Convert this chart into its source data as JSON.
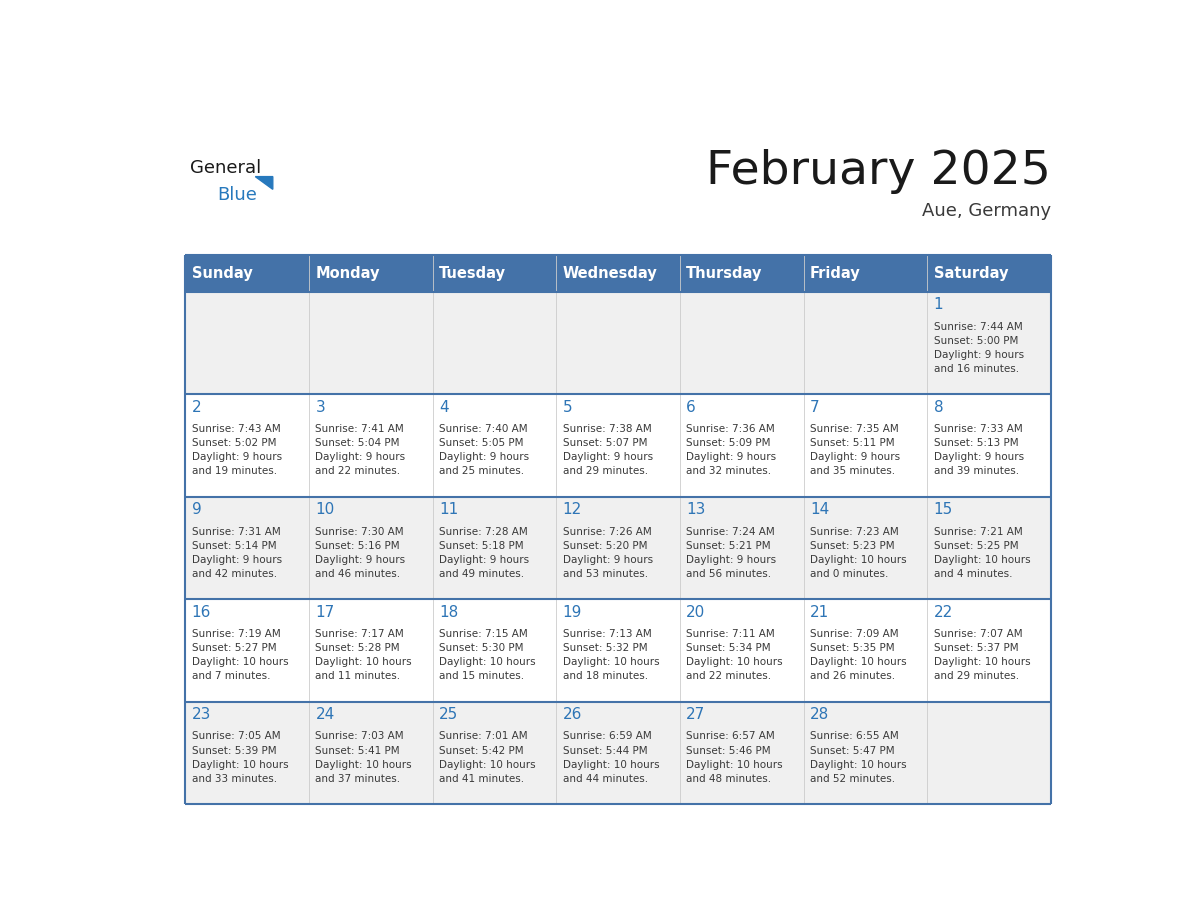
{
  "title": "February 2025",
  "subtitle": "Aue, Germany",
  "days_of_week": [
    "Sunday",
    "Monday",
    "Tuesday",
    "Wednesday",
    "Thursday",
    "Friday",
    "Saturday"
  ],
  "header_bg": "#4472a8",
  "header_text_color": "#ffffff",
  "row_bg_odd": "#f0f0f0",
  "row_bg_even": "#ffffff",
  "day_number_color": "#3a3a3a",
  "info_text_color": "#3a3a3a",
  "border_color": "#4472a8",
  "title_color": "#1a1a1a",
  "subtitle_color": "#3a3a3a",
  "blue_text_color": "#2e75b6",
  "logo_general_color": "#1a1a1a",
  "logo_blue_color": "#2779bd",
  "calendar_data": [
    {
      "day": 1,
      "col": 6,
      "row": 0,
      "sunrise": "7:44 AM",
      "sunset": "5:00 PM",
      "daylight": "9 hours and 16 minutes."
    },
    {
      "day": 2,
      "col": 0,
      "row": 1,
      "sunrise": "7:43 AM",
      "sunset": "5:02 PM",
      "daylight": "9 hours and 19 minutes."
    },
    {
      "day": 3,
      "col": 1,
      "row": 1,
      "sunrise": "7:41 AM",
      "sunset": "5:04 PM",
      "daylight": "9 hours and 22 minutes."
    },
    {
      "day": 4,
      "col": 2,
      "row": 1,
      "sunrise": "7:40 AM",
      "sunset": "5:05 PM",
      "daylight": "9 hours and 25 minutes."
    },
    {
      "day": 5,
      "col": 3,
      "row": 1,
      "sunrise": "7:38 AM",
      "sunset": "5:07 PM",
      "daylight": "9 hours and 29 minutes."
    },
    {
      "day": 6,
      "col": 4,
      "row": 1,
      "sunrise": "7:36 AM",
      "sunset": "5:09 PM",
      "daylight": "9 hours and 32 minutes."
    },
    {
      "day": 7,
      "col": 5,
      "row": 1,
      "sunrise": "7:35 AM",
      "sunset": "5:11 PM",
      "daylight": "9 hours and 35 minutes."
    },
    {
      "day": 8,
      "col": 6,
      "row": 1,
      "sunrise": "7:33 AM",
      "sunset": "5:13 PM",
      "daylight": "9 hours and 39 minutes."
    },
    {
      "day": 9,
      "col": 0,
      "row": 2,
      "sunrise": "7:31 AM",
      "sunset": "5:14 PM",
      "daylight": "9 hours and 42 minutes."
    },
    {
      "day": 10,
      "col": 1,
      "row": 2,
      "sunrise": "7:30 AM",
      "sunset": "5:16 PM",
      "daylight": "9 hours and 46 minutes."
    },
    {
      "day": 11,
      "col": 2,
      "row": 2,
      "sunrise": "7:28 AM",
      "sunset": "5:18 PM",
      "daylight": "9 hours and 49 minutes."
    },
    {
      "day": 12,
      "col": 3,
      "row": 2,
      "sunrise": "7:26 AM",
      "sunset": "5:20 PM",
      "daylight": "9 hours and 53 minutes."
    },
    {
      "day": 13,
      "col": 4,
      "row": 2,
      "sunrise": "7:24 AM",
      "sunset": "5:21 PM",
      "daylight": "9 hours and 56 minutes."
    },
    {
      "day": 14,
      "col": 5,
      "row": 2,
      "sunrise": "7:23 AM",
      "sunset": "5:23 PM",
      "daylight": "10 hours and 0 minutes."
    },
    {
      "day": 15,
      "col": 6,
      "row": 2,
      "sunrise": "7:21 AM",
      "sunset": "5:25 PM",
      "daylight": "10 hours and 4 minutes."
    },
    {
      "day": 16,
      "col": 0,
      "row": 3,
      "sunrise": "7:19 AM",
      "sunset": "5:27 PM",
      "daylight": "10 hours and 7 minutes."
    },
    {
      "day": 17,
      "col": 1,
      "row": 3,
      "sunrise": "7:17 AM",
      "sunset": "5:28 PM",
      "daylight": "10 hours and 11 minutes."
    },
    {
      "day": 18,
      "col": 2,
      "row": 3,
      "sunrise": "7:15 AM",
      "sunset": "5:30 PM",
      "daylight": "10 hours and 15 minutes."
    },
    {
      "day": 19,
      "col": 3,
      "row": 3,
      "sunrise": "7:13 AM",
      "sunset": "5:32 PM",
      "daylight": "10 hours and 18 minutes."
    },
    {
      "day": 20,
      "col": 4,
      "row": 3,
      "sunrise": "7:11 AM",
      "sunset": "5:34 PM",
      "daylight": "10 hours and 22 minutes."
    },
    {
      "day": 21,
      "col": 5,
      "row": 3,
      "sunrise": "7:09 AM",
      "sunset": "5:35 PM",
      "daylight": "10 hours and 26 minutes."
    },
    {
      "day": 22,
      "col": 6,
      "row": 3,
      "sunrise": "7:07 AM",
      "sunset": "5:37 PM",
      "daylight": "10 hours and 29 minutes."
    },
    {
      "day": 23,
      "col": 0,
      "row": 4,
      "sunrise": "7:05 AM",
      "sunset": "5:39 PM",
      "daylight": "10 hours and 33 minutes."
    },
    {
      "day": 24,
      "col": 1,
      "row": 4,
      "sunrise": "7:03 AM",
      "sunset": "5:41 PM",
      "daylight": "10 hours and 37 minutes."
    },
    {
      "day": 25,
      "col": 2,
      "row": 4,
      "sunrise": "7:01 AM",
      "sunset": "5:42 PM",
      "daylight": "10 hours and 41 minutes."
    },
    {
      "day": 26,
      "col": 3,
      "row": 4,
      "sunrise": "6:59 AM",
      "sunset": "5:44 PM",
      "daylight": "10 hours and 44 minutes."
    },
    {
      "day": 27,
      "col": 4,
      "row": 4,
      "sunrise": "6:57 AM",
      "sunset": "5:46 PM",
      "daylight": "10 hours and 48 minutes."
    },
    {
      "day": 28,
      "col": 5,
      "row": 4,
      "sunrise": "6:55 AM",
      "sunset": "5:47 PM",
      "daylight": "10 hours and 52 minutes."
    }
  ]
}
